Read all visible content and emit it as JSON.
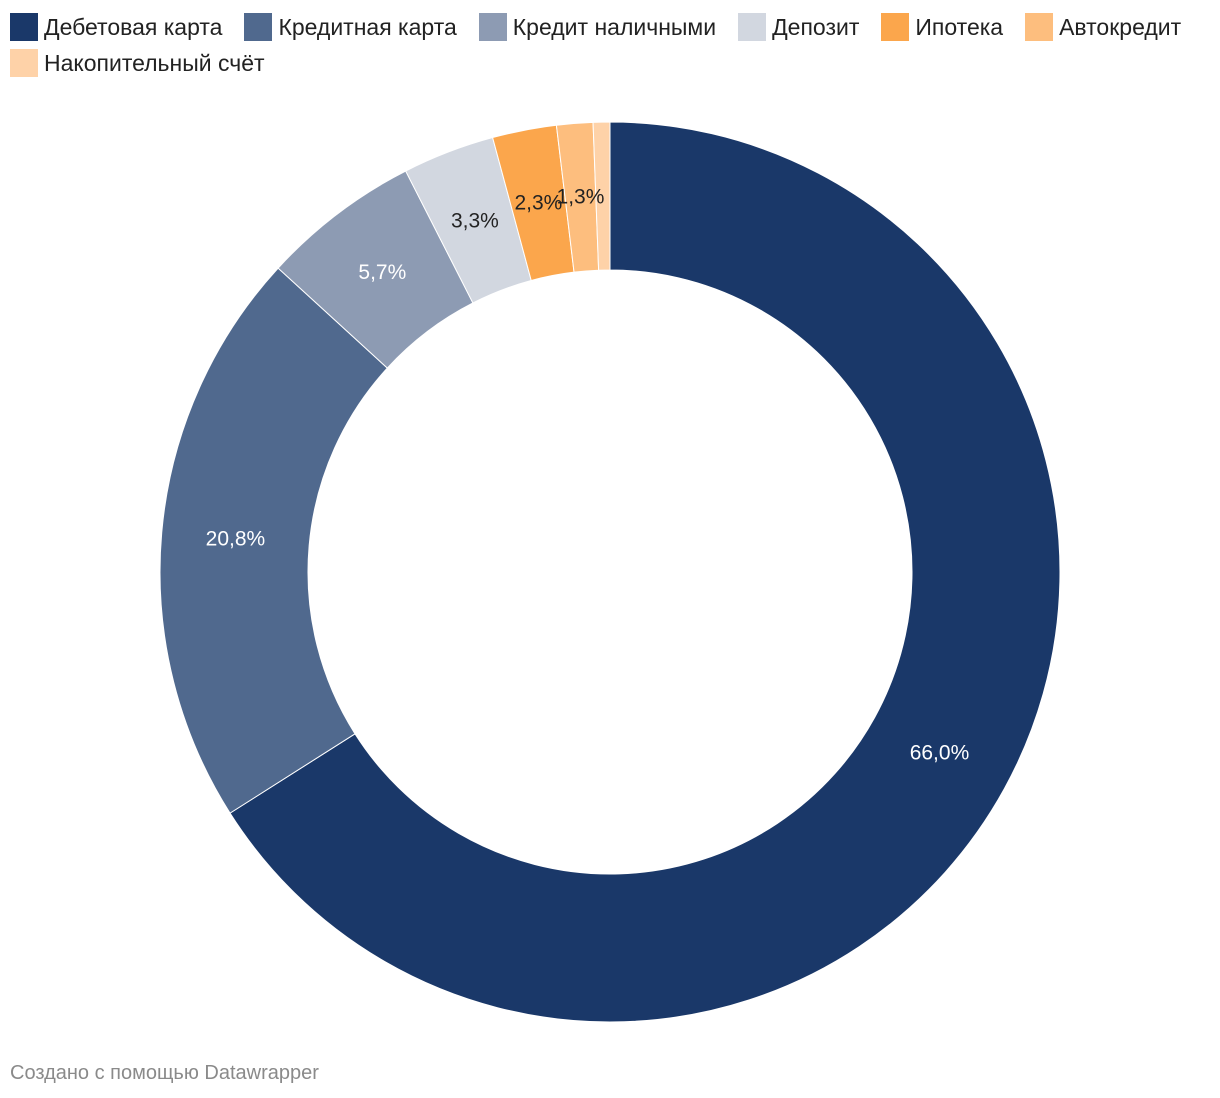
{
  "chart_data": {
    "type": "pie",
    "donut": true,
    "title": "",
    "legend_position": "top-left",
    "categories": [
      "Дебетовая карта",
      "Кредитная карта",
      "Кредит наличными",
      "Депозит",
      "Ипотека",
      "Автокредит",
      "Накопительный счёт"
    ],
    "values": [
      66.0,
      20.8,
      5.7,
      3.3,
      2.3,
      1.3,
      0.6
    ],
    "labels": [
      "66,0%",
      "20,8%",
      "5,7%",
      "3,3%",
      "2,3%",
      "1,3%",
      ""
    ],
    "colors": [
      "#1a3869",
      "#50698e",
      "#8d9bb3",
      "#d2d7e0",
      "#fba64c",
      "#fdbe7e",
      "#fed2a8"
    ],
    "label_colors": [
      "#ffffff",
      "#ffffff",
      "#ffffff",
      "#222222",
      "#222222",
      "#222222",
      "#222222"
    ]
  },
  "footer": {
    "credit": "Создано с помощью Datawrapper"
  }
}
